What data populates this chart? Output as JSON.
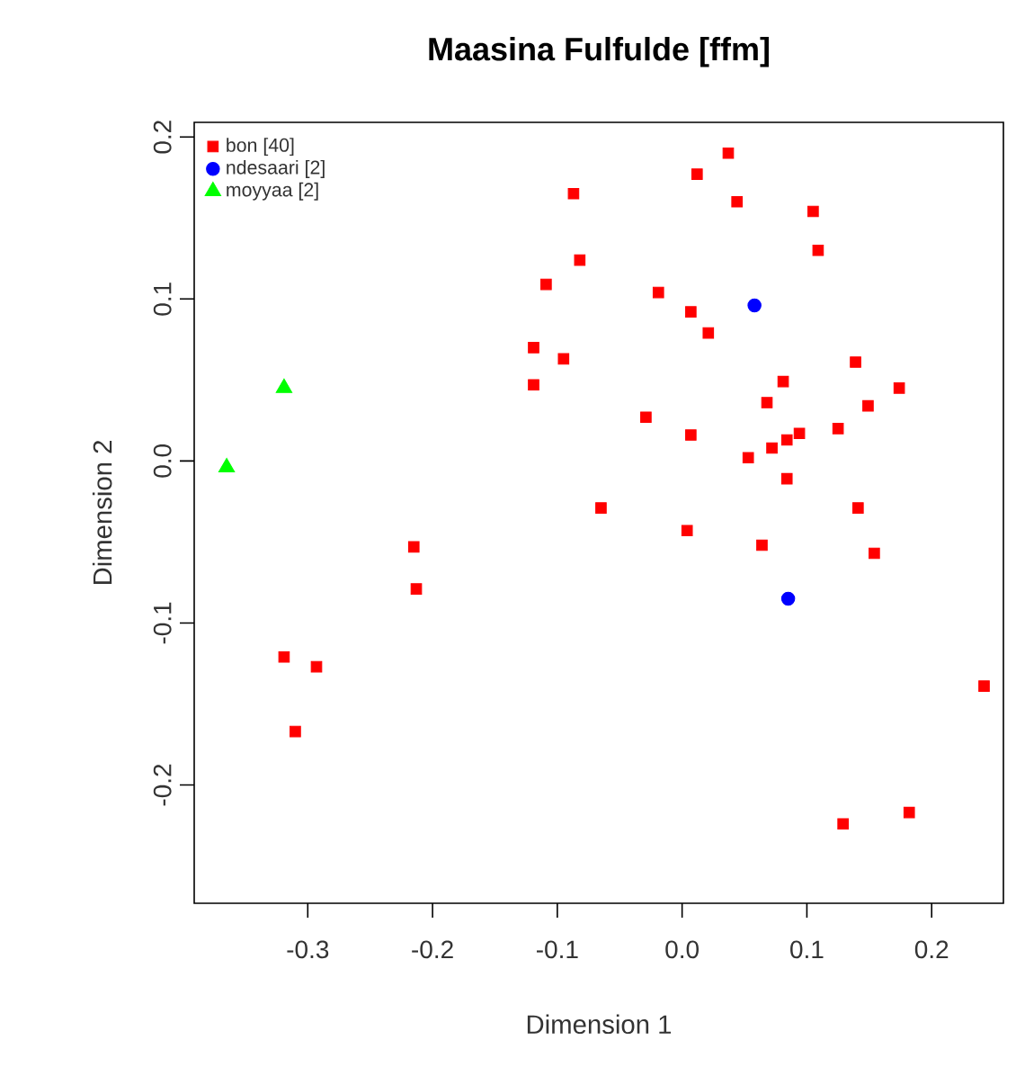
{
  "chart_data": {
    "type": "scatter",
    "title": "Maasina Fulfulde [ffm]",
    "xlabel": "Dimension 1",
    "ylabel": "Dimension 2",
    "xlim": [
      -0.391,
      0.2575
    ],
    "ylim": [
      -0.273,
      0.209
    ],
    "xticks": [
      -0.3,
      -0.2,
      -0.1,
      {
        "value": 0,
        "label": "0.0"
      },
      0.1,
      0.2
    ],
    "yticks": [
      -0.2,
      -0.1,
      {
        "value": 0,
        "label": "0.0"
      },
      0.1,
      0.2
    ],
    "grid": false,
    "legend": "top left",
    "series": [
      {
        "name": "bon [40]",
        "color": "#ff0000",
        "marker": "square",
        "x": [
          0.037,
          0.012,
          0.044,
          0.105,
          0.109,
          -0.019,
          0.007,
          0.021,
          0.139,
          0.081,
          0.174,
          0.068,
          0.149,
          -0.029,
          0.007,
          0.125,
          0.094,
          0.084,
          0.072,
          0.053,
          0.084,
          -0.065,
          0.141,
          0.004,
          0.064,
          0.154,
          0.242,
          0.182,
          0.129,
          -0.087,
          -0.082,
          -0.109,
          -0.119,
          -0.095,
          -0.119,
          -0.215,
          -0.213,
          -0.319,
          -0.293,
          -0.31
        ],
        "values": [
          0.19,
          0.177,
          0.16,
          0.154,
          0.13,
          0.104,
          0.092,
          0.079,
          0.061,
          0.049,
          0.045,
          0.036,
          0.034,
          0.027,
          0.016,
          0.02,
          0.017,
          0.013,
          0.008,
          0.002,
          -0.011,
          -0.029,
          -0.029,
          -0.043,
          -0.052,
          -0.057,
          -0.139,
          -0.217,
          -0.224,
          0.165,
          0.124,
          0.109,
          0.07,
          0.063,
          0.047,
          -0.053,
          -0.079,
          -0.121,
          -0.127,
          -0.167
        ]
      },
      {
        "name": "ndesaari [2]",
        "color": "#0000ff",
        "marker": "circle",
        "x": [
          0.058,
          0.085
        ],
        "values": [
          0.096,
          -0.085
        ]
      },
      {
        "name": "moyyaa [2]",
        "color": "#00ff00",
        "marker": "triangle",
        "x": [
          -0.319,
          -0.365
        ],
        "values": [
          0.045,
          -0.004
        ]
      }
    ]
  }
}
